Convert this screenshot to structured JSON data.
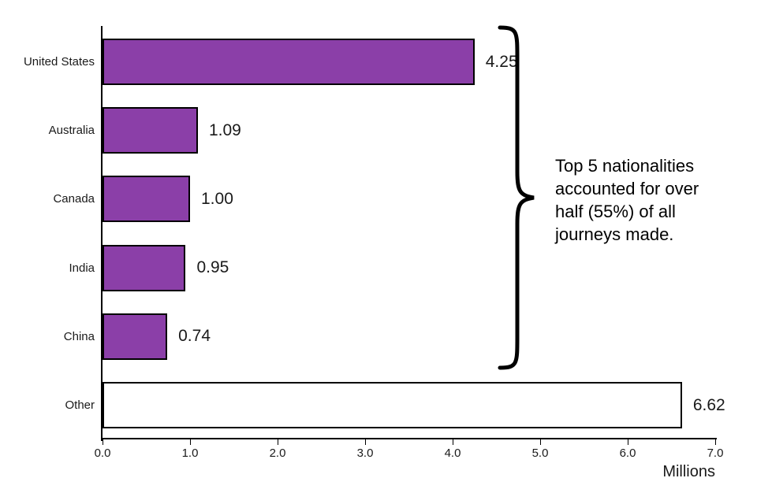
{
  "chart_data": {
    "type": "bar",
    "orientation": "horizontal",
    "title": "",
    "categories": [
      "United States",
      "Australia",
      "Canada",
      "India",
      "China",
      "Other"
    ],
    "values": [
      4.25,
      1.09,
      1.0,
      0.95,
      0.74,
      6.62
    ],
    "value_labels": [
      "4.25",
      "1.09",
      "1.00",
      "0.95",
      "0.74",
      "6.62"
    ],
    "bar_colors": [
      "#8b3fa8",
      "#8b3fa8",
      "#8b3fa8",
      "#8b3fa8",
      "#8b3fa8",
      "#ffffff"
    ],
    "bar_border_color": "#000000",
    "xlabel": "Millions",
    "ylabel": "",
    "xlim": [
      0,
      7
    ],
    "x_ticks": [
      "0.0",
      "1.0",
      "2.0",
      "3.0",
      "4.0",
      "5.0",
      "6.0",
      "7.0"
    ],
    "grid": false,
    "legend": "none",
    "annotation": "Top 5 nationalities accounted for over half (55%) of all journeys made."
  }
}
